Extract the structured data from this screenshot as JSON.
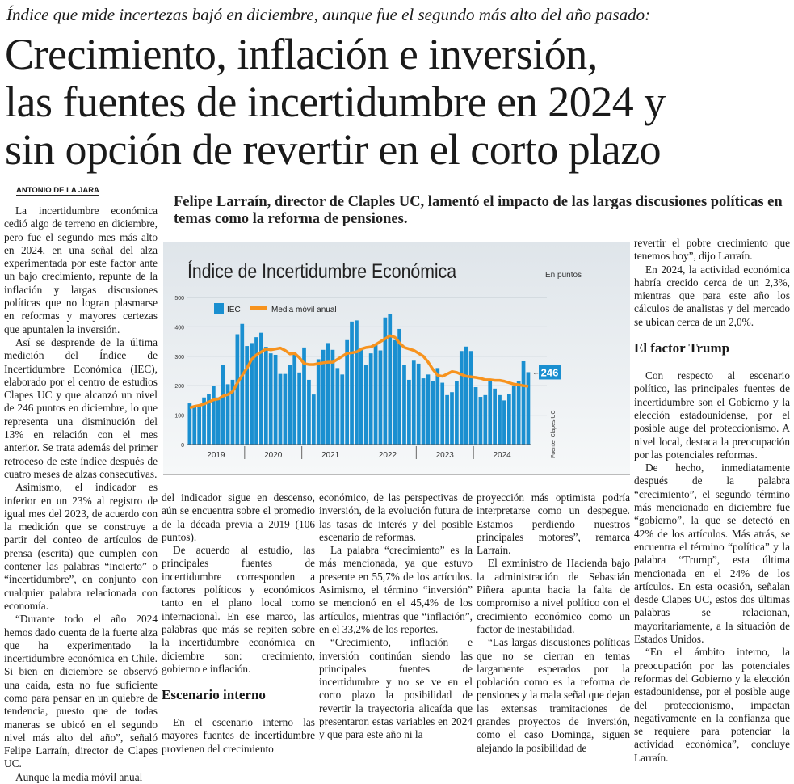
{
  "kicker": "Índice que mide incertezas bajó en diciembre, aunque fue el segundo más alto del año pasado:",
  "headline": [
    "Crecimiento, inflación e inversión,",
    "las fuentes de incertidumbre en 2024 y",
    "sin opción de revertir en el corto plazo"
  ],
  "byline": "ANTONIO DE LA JARA",
  "deck": "Felipe Larraín, director de Claples UC, lamentó el impacto de las largas discusiones políticas en temas como la reforma de pensiones.",
  "columns": {
    "c1": [
      "La incertidumbre económica cedió algo de terreno en diciembre, pero fue el segundo mes más alto en 2024, en una señal del alza experimentada por este factor ante un bajo crecimiento, repunte de la inflación y largas discusiones políticas que no logran plasmarse en reformas y mayores certezas que apuntalen la inversión.",
      "Así se desprende de la última medición del Índice de Incertidumbre Económica (IEC), elaborado por el centro de estudios Clapes UC y que alcanzó un nivel de 246 puntos en diciembre, lo que representa una disminución del 13% en relación con el mes anterior. Se trata además del primer retroceso de este índice después de cuatro meses de alzas consecutivas.",
      "Asimismo, el indicador es inferior en un 23% al registro de igual mes del 2023, de acuerdo con la medición que se construye a partir del conteo de artículos de prensa (escrita) que cumplen con contener las palabras “incierto” o “incertidumbre”, en conjunto con cualquier palabra relacionada con economía.",
      "“Durante todo el año 2024 hemos dado cuenta de la fuerte alza que ha experimentado la incertidumbre económica en Chile. Si bien en diciembre se observó una caída, esta no fue suficiente como para pensar en un quiebre de tendencia, puesto que de todas maneras se ubicó en el segundo nivel más alto del año”, señaló Felipe Larraín, director de Clapes UC.",
      "Aunque la media móvil anual"
    ],
    "c2a": [
      "del indicador sigue en descenso, aún se encuentra sobre el promedio de la década previa a 2019 (106 puntos).",
      "De acuerdo al estudio, las principales fuentes de incertidumbre corresponden a factores políticos y económicos tanto en el plano local como internacional. En ese marco, las palabras que más se repiten sobre la incertidumbre económica en diciembre son: crecimiento, gobierno e inflación."
    ],
    "h_interno": "Escenario interno",
    "c2b": [
      "En el escenario interno las mayores fuentes de incertidumbre provienen del crecimiento"
    ],
    "c3": [
      "económico, de las perspectivas de inversión, de la evolución futura de las tasas de interés y del posible escenario de reformas.",
      "La palabra “crecimiento” es la más mencionada, ya que estuvo presente en 55,7% de los artículos. Asimismo, el término “inversión” se mencionó en el 45,4% de los artículos, mientras que “inflación”, en el 33,2% de los reportes.",
      "“Crecimiento, inflación e inversión continúan siendo las principales fuentes de incertidumbre y no se ve en el corto plazo la posibilidad de revertir la trayectoria alicaída que presentaron estas variables en 2024 y que para este año ni la"
    ],
    "c4": [
      "proyección más optimista podría interpretarse como un despegue. Estamos perdiendo nuestros principales motores”, remarca Larraín.",
      "El exministro de Hacienda bajo la administración de Sebastián Piñera apunta hacia la falta de compromiso a nivel político con el crecimiento económico como un factor de inestabilidad.",
      "“Las largas discusiones políticas que no se cierran en temas largamente esperados por la población como es la reforma de pensiones y la mala señal que dejan las extensas tramitaciones de grandes proyectos de inversión, como el caso Dominga, siguen alejando la posibilidad de"
    ],
    "c5a": [
      "revertir el pobre crecimiento que tenemos hoy”, dijo Larraín.",
      "En 2024, la actividad económica habría crecido cerca de un 2,3%, mientras que para este año los cálculos de analistas y del mercado se ubican cerca de un 2,0%."
    ],
    "h_trump": "El factor Trump",
    "c5b": [
      "Con respecto al escenario político, las principales fuentes de incertidumbre son el Gobierno y la elección estadounidense, por el posible auge del proteccionismo. A nivel local, destaca la preocupación por las potenciales reformas.",
      "De hecho, inmediatamente después de la palabra “crecimiento”, el segundo término más mencionado en diciembre fue “gobierno”, la que se detectó en 42% de los artículos. Más atrás, se encuentra el término “política” y la palabra “Trump”, esta última mencionada en el 24% de los artículos. En esta ocasión, señalan desde Clapes UC, estos dos últimas palabras se relacionan, mayoritariamente, a la situación de Estados Unidos.",
      "“En el ámbito interno, la preocupación por las potenciales reformas del Gobierno y la elección estadounidense, por el posible auge del proteccionismo, impactan negativamente en la confianza que se requiere para potenciar la actividad económica”, concluye Larraín."
    ]
  },
  "chart_data": {
    "type": "bar",
    "title": "Índice de Incertidumbre Económica",
    "unit": "En puntos",
    "source": "Fuente: Clapes UC",
    "legend": [
      "IEC",
      "Media móvil anual"
    ],
    "colors": {
      "bar": "#1a8fd0",
      "line": "#f7931e",
      "label_bg": "#1a8fd0"
    },
    "ylim": [
      0,
      500
    ],
    "yticks": [
      "0",
      "100",
      "200",
      "300",
      "400",
      "500"
    ],
    "years": [
      "2019",
      "2020",
      "2021",
      "2022",
      "2023",
      "2024"
    ],
    "last_label": "246",
    "series": [
      {
        "name": "IEC",
        "values": [
          140,
          130,
          135,
          160,
          172,
          200,
          160,
          270,
          205,
          220,
          375,
          410,
          335,
          345,
          365,
          380,
          332,
          310,
          305,
          240,
          240,
          270,
          315,
          245,
          330,
          220,
          170,
          290,
          322,
          345,
          322,
          260,
          238,
          355,
          418,
          422,
          325,
          270,
          310,
          340,
          320,
          432,
          445,
          355,
          393,
          270,
          220,
          285,
          275,
          225,
          238,
          215,
          260,
          210,
          168,
          178,
          215,
          318,
          333,
          318,
          195,
          162,
          168,
          220,
          190,
          168,
          150,
          172,
          200,
          215,
          283,
          246
        ]
      },
      {
        "name": "Media móvil anual",
        "values": [
          125,
          130,
          133,
          138,
          145,
          152,
          155,
          165,
          170,
          180,
          210,
          235,
          260,
          290,
          305,
          315,
          325,
          322,
          325,
          328,
          320,
          308,
          310,
          295,
          275,
          272,
          272,
          275,
          278,
          280,
          280,
          290,
          300,
          310,
          312,
          315,
          325,
          330,
          332,
          340,
          350,
          360,
          370,
          365,
          345,
          330,
          325,
          320,
          310,
          300,
          280,
          255,
          235,
          232,
          240,
          248,
          245,
          238,
          232,
          230,
          228,
          225,
          220,
          220,
          218,
          218,
          215,
          210,
          205,
          203,
          200,
          198
        ]
      }
    ]
  }
}
